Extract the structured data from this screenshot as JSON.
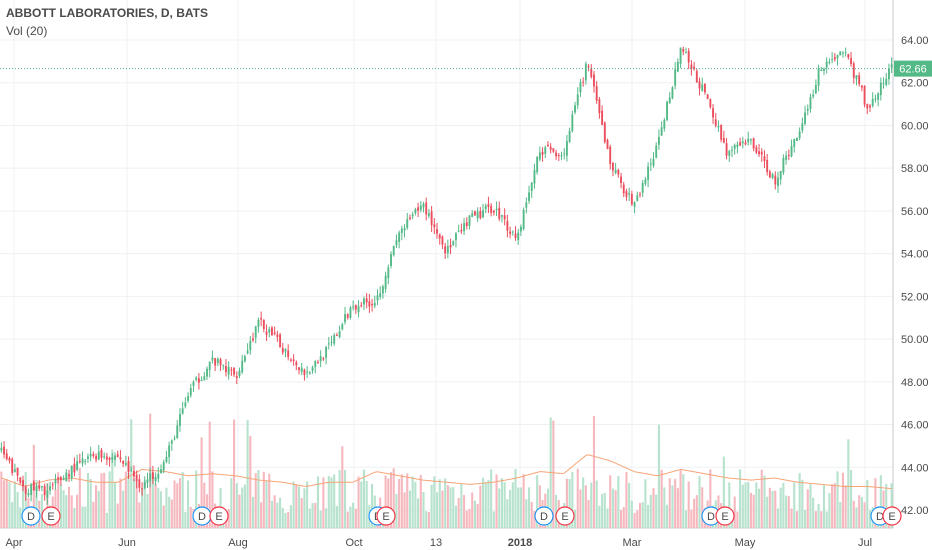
{
  "header": {
    "title": "ABBOTT LABORATORIES, D, BATS",
    "indicator": "Vol (20)"
  },
  "colors": {
    "up": "#53b987",
    "down": "#eb4d5c",
    "volume_up": "#b7e2cd",
    "volume_down": "#f6b8bf",
    "volume_ma": "#f7a476",
    "price_line": "#4caf93",
    "price_tag_bg": "#53b987",
    "grid": "#eef0f3",
    "axis_text": "#4a4a4a",
    "dividend": "#2196f3",
    "earnings": "#f23645"
  },
  "chart_data": {
    "type": "candlestick",
    "title": "ABBOTT LABORATORIES, D, BATS",
    "y_ticks": [
      42.0,
      44.0,
      46.0,
      48.0,
      50.0,
      52.0,
      54.0,
      56.0,
      58.0,
      60.0,
      62.0,
      64.0
    ],
    "y_tick_labels": [
      "42.00",
      "44.00",
      "46.00",
      "48.00",
      "50.00",
      "52.00",
      "54.00",
      "56.00",
      "58.00",
      "60.00",
      "62.00",
      "64.00"
    ],
    "ylim": [
      41.5,
      65.2
    ],
    "x_labels": [
      "Apr",
      "Jun",
      "Aug",
      "Oct",
      "13",
      "2018",
      "Mar",
      "May",
      "Jul"
    ],
    "last_price": 62.66,
    "last_price_label": "62.66",
    "price_trend": [
      44.7,
      43.0,
      42.9,
      43.9,
      44.6,
      44.5,
      43.1,
      44.3,
      47.5,
      49.0,
      48.3,
      50.8,
      49.6,
      48.4,
      49.6,
      51.6,
      51.8,
      55.0,
      56.3,
      54.1,
      55.6,
      56.2,
      54.7,
      58.9,
      58.7,
      63.0,
      58.2,
      56.2,
      59.0,
      63.7,
      61.5,
      58.7,
      59.3,
      57.4,
      59.6,
      62.8,
      63.5,
      60.8,
      62.7
    ],
    "volume_ma_trend": [
      43.5,
      43.1,
      43.4,
      43.5,
      43.3,
      43.3,
      43.9,
      43.8,
      43.6,
      43.7,
      43.6,
      43.4,
      43.3,
      43.1,
      43.3,
      43.3,
      43.8,
      43.6,
      43.4,
      43.3,
      43.2,
      43.3,
      43.5,
      43.8,
      43.7,
      44.6,
      44.3,
      43.8,
      43.6,
      43.9,
      43.7,
      43.5,
      43.4,
      43.5,
      43.3,
      43.2,
      43.1,
      43.1,
      43.0
    ],
    "events": [
      {
        "date": "Apr",
        "label": "D"
      },
      {
        "date": "Apr",
        "label": "E"
      },
      {
        "date": "Jul",
        "label": "D"
      },
      {
        "date": "Jul",
        "label": "E"
      },
      {
        "date": "Oct",
        "label": "D"
      },
      {
        "date": "Oct",
        "label": "E"
      },
      {
        "date": "Jan",
        "label": "D"
      },
      {
        "date": "Jan",
        "label": "E"
      },
      {
        "date": "Apr",
        "label": "D"
      },
      {
        "date": "Apr",
        "label": "E"
      },
      {
        "date": "Jul",
        "label": "D"
      },
      {
        "date": "Jul",
        "label": "E"
      }
    ]
  }
}
